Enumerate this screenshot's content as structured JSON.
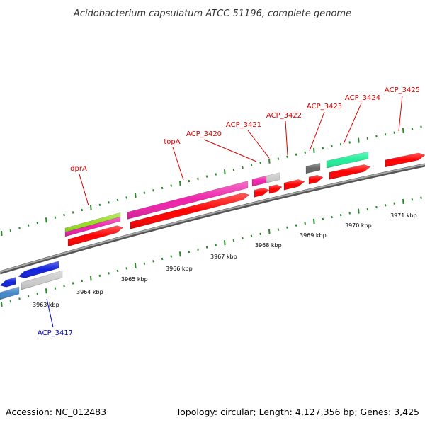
{
  "title": "Acidobacterium capsulatum ATCC 51196, complete genome",
  "footer": {
    "accession": "Accession: NC_012483",
    "summary": "Topology: circular; Length: 4,127,356 bp; Genes: 3,425"
  },
  "colors": {
    "backbone": "#888888",
    "tick": "#2a8a2a",
    "label_red": "#dd0000",
    "label_blue": "#0000cc",
    "gene_red": "#ff0000",
    "gene_pink": "#ee22aa",
    "gene_green": "#99dd22",
    "gene_teal": "#22ee99",
    "gene_gray": "#cccccc",
    "gene_dark": "#666666",
    "gene_blue": "#1122dd",
    "gene_steel": "#4488cc"
  },
  "kbp_labels": [
    "3963 kbp",
    "3964 kbp",
    "3965 kbp",
    "3966 kbp",
    "3967 kbp",
    "3968 kbp",
    "3969 kbp",
    "3970 kbp",
    "3971 kbp"
  ],
  "gene_labels": [
    {
      "name": "dprA",
      "color": "red"
    },
    {
      "name": "topA",
      "color": "red"
    },
    {
      "name": "ACP_3420",
      "color": "red"
    },
    {
      "name": "ACP_3421",
      "color": "red"
    },
    {
      "name": "ACP_3422",
      "color": "red"
    },
    {
      "name": "ACP_3423",
      "color": "red"
    },
    {
      "name": "ACP_3424",
      "color": "red"
    },
    {
      "name": "ACP_3425",
      "color": "red"
    },
    {
      "name": "ACP_3417",
      "color": "blue"
    }
  ]
}
